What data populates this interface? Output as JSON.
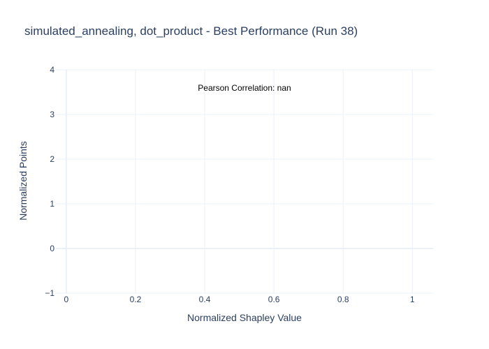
{
  "chart_data": {
    "type": "scatter",
    "title": "simulated_annealing, dot_product - Best Performance (Run 38)",
    "xlabel": "Normalized Shapley Value",
    "ylabel": "Normalized Points",
    "xlim": [
      -0.03,
      1.06
    ],
    "ylim": [
      -1,
      4
    ],
    "xticks": [
      0,
      0.2,
      0.4,
      0.6,
      0.8,
      1
    ],
    "xtick_labels": [
      "0",
      "0.2",
      "0.4",
      "0.6",
      "0.8",
      "1"
    ],
    "yticks": [
      -1,
      0,
      1,
      2,
      3,
      4
    ],
    "ytick_labels": [
      "−1",
      "0",
      "1",
      "2",
      "3",
      "4"
    ],
    "grid": true,
    "series": [],
    "annotation": "Pearson Correlation: nan",
    "annotation_position": "top-center",
    "colors": {
      "text": "#2a3f5f",
      "grid": "#ebf0f8",
      "zeroline": "#ebf0f8",
      "background": "#ffffff"
    }
  }
}
